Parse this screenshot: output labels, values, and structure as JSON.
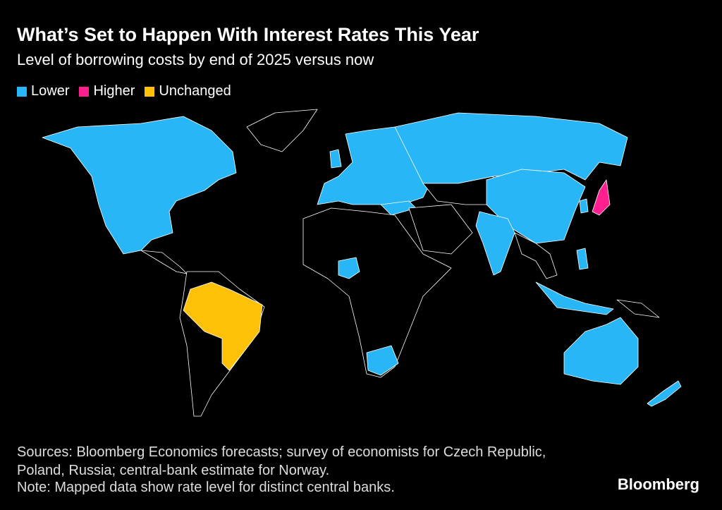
{
  "header": {
    "title": "What’s Set to Happen With Interest Rates This Year",
    "subtitle": "Level of borrowing costs by end of 2025 versus now"
  },
  "legend": {
    "items": [
      {
        "label": "Lower",
        "color": "#29b6f6"
      },
      {
        "label": "Higher",
        "color": "#ff1f8e"
      },
      {
        "label": "Unchanged",
        "color": "#ffc107"
      }
    ]
  },
  "footer": {
    "sources": "Sources: Bloomberg Economics forecasts; survey of economists for Czech Republic, Poland, Russia; central-bank estimate for Norway.",
    "note": "Note: Mapped data show rate level for distinct central banks.",
    "brand": "Bloomberg"
  }
}
